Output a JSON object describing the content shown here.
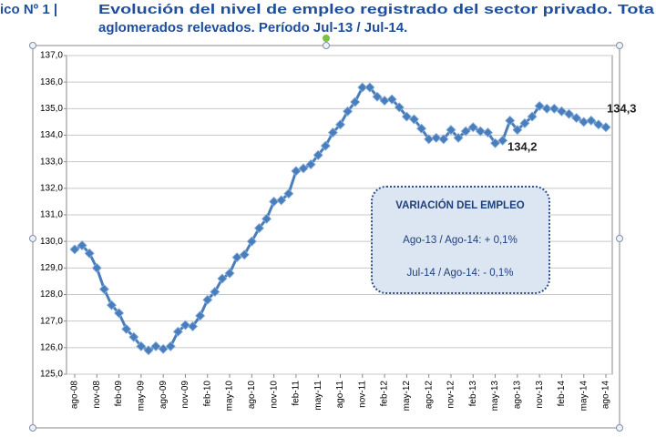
{
  "chart_data": {
    "type": "line",
    "title_prefix": "ico Nº 1 |",
    "title": [
      "Evolución del nivel de empleo registrado del sector privado. Tota",
      "aglomerados relevados.  Período Jul-13 / Jul-14."
    ],
    "categories": [
      "ago-08",
      null,
      null,
      "nov-08",
      null,
      null,
      "feb-09",
      null,
      null,
      "may-09",
      null,
      null,
      "ago-09",
      null,
      null,
      "nov-09",
      null,
      null,
      "feb-10",
      null,
      null,
      "may-10",
      null,
      null,
      "ago-10",
      null,
      null,
      "nov-10",
      null,
      null,
      "feb-11",
      null,
      null,
      "may-11",
      null,
      null,
      "ago-11",
      null,
      null,
      "nov-11",
      null,
      null,
      "feb-12",
      null,
      null,
      "may-12",
      null,
      null,
      "ago-12",
      null,
      null,
      "nov-12",
      null,
      null,
      "feb-13",
      null,
      null,
      "may-13",
      null,
      null,
      "ago-13",
      null,
      null,
      "nov-13",
      null,
      null,
      "feb-14",
      null,
      null,
      "may-14",
      null,
      null,
      "ago-14"
    ],
    "values": [
      129.7,
      129.85,
      129.55,
      129.0,
      128.2,
      127.6,
      127.3,
      126.7,
      126.4,
      126.05,
      125.9,
      126.05,
      125.95,
      126.05,
      126.6,
      126.85,
      126.8,
      127.2,
      127.8,
      128.1,
      128.6,
      128.8,
      129.4,
      129.5,
      130.0,
      130.5,
      130.85,
      131.5,
      131.55,
      131.8,
      132.65,
      132.75,
      132.9,
      133.25,
      133.6,
      134.1,
      134.4,
      134.9,
      135.25,
      135.8,
      135.8,
      135.45,
      135.3,
      135.35,
      135.05,
      134.7,
      134.6,
      134.25,
      133.85,
      133.9,
      133.85,
      134.2,
      133.9,
      134.15,
      134.3,
      134.15,
      134.1,
      133.7,
      133.8,
      134.55,
      134.2,
      134.45,
      134.7,
      135.1,
      135.0,
      135.0,
      134.9,
      134.8,
      134.65,
      134.5,
      134.55,
      134.4,
      134.3
    ],
    "color": "#4a7ebb",
    "ylim": [
      125,
      137
    ],
    "yticks": [
      {
        "value": 125,
        "label": "125,0"
      },
      {
        "value": 126,
        "label": "126,0"
      },
      {
        "value": 127,
        "label": "127,0"
      },
      {
        "value": 128,
        "label": "128,0"
      },
      {
        "value": 129,
        "label": "129,0"
      },
      {
        "value": 130,
        "label": "130,0"
      },
      {
        "value": 131,
        "label": "131,0"
      },
      {
        "value": 132,
        "label": "132,0"
      },
      {
        "value": 133,
        "label": "133,0"
      },
      {
        "value": 134,
        "label": "134,0"
      },
      {
        "value": 135,
        "label": "135,0"
      },
      {
        "value": 136,
        "label": "136,0"
      },
      {
        "value": 137,
        "label": "137,0"
      }
    ],
    "grid": true,
    "annotations": [
      "134,2",
      "134,3"
    ],
    "info_box": [
      "VARIACIÓN DEL EMPLEO",
      "Ago-13 / Ago-14: + 0,1%",
      "Jul-14 / Ago-14: - 0,1%"
    ]
  }
}
